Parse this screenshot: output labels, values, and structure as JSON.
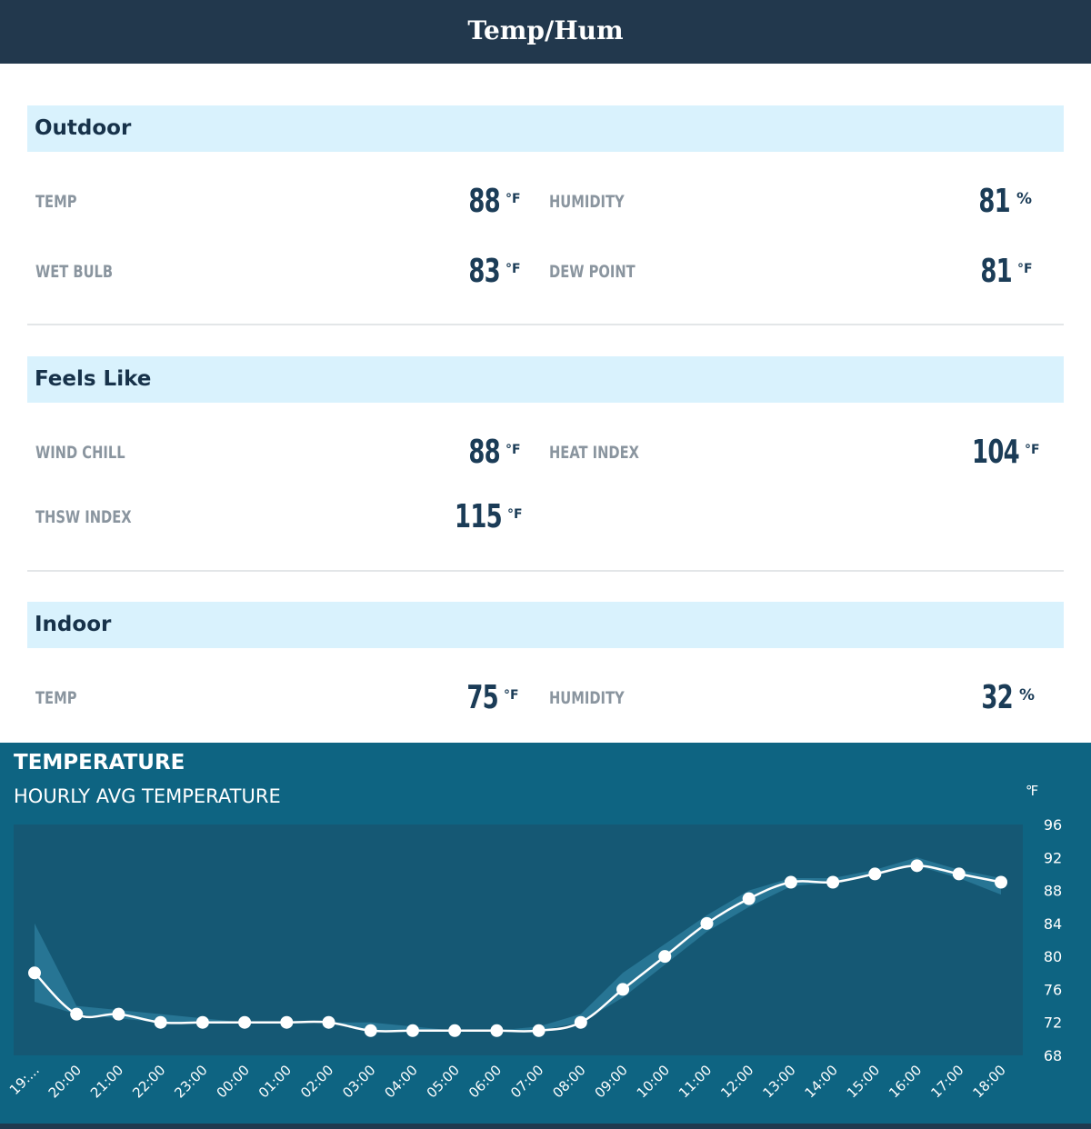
{
  "header": {
    "title": "Temp/Hum"
  },
  "outdoor": {
    "heading": "Outdoor",
    "temp": {
      "label": "TEMP",
      "value": "88",
      "unit": "°F"
    },
    "humidity": {
      "label": "HUMIDITY",
      "value": "81",
      "unit": "%"
    },
    "wet_bulb": {
      "label": "WET BULB",
      "value": "83",
      "unit": "°F"
    },
    "dew_point": {
      "label": "DEW POINT",
      "value": "81",
      "unit": "°F"
    }
  },
  "feels_like": {
    "heading": "Feels Like",
    "wind_chill": {
      "label": "WIND CHILL",
      "value": "88",
      "unit": "°F"
    },
    "heat_index": {
      "label": "HEAT INDEX",
      "value": "104",
      "unit": "°F"
    },
    "thsw_index": {
      "label": "THSW INDEX",
      "value": "115",
      "unit": "°F"
    }
  },
  "indoor": {
    "heading": "Indoor",
    "temp": {
      "label": "TEMP",
      "value": "75",
      "unit": "°F"
    },
    "humidity": {
      "label": "HUMIDITY",
      "value": "32",
      "unit": "%"
    }
  },
  "chart_panel": {
    "title": "TEMPERATURE",
    "subtitle": "HOURLY AVG TEMPERATURE",
    "unit": "℉"
  },
  "colors": {
    "header_bg": "#22384d",
    "section_bg": "#d9f2fd",
    "value_text": "#1b3c57",
    "chart_bg": "#0e6482",
    "plot_bg": "#155874",
    "band": "#2a7a9a"
  },
  "chart_data": {
    "type": "line",
    "title": "TEMPERATURE",
    "subtitle": "HOURLY AVG TEMPERATURE",
    "ylabel": "℉",
    "ylim": [
      68,
      96
    ],
    "yticks": [
      96,
      92,
      88,
      84,
      80,
      76,
      72,
      68
    ],
    "grid": false,
    "categories": [
      "19:...",
      "20:00",
      "21:00",
      "22:00",
      "23:00",
      "00:00",
      "01:00",
      "02:00",
      "03:00",
      "04:00",
      "05:00",
      "06:00",
      "07:00",
      "08:00",
      "09:00",
      "10:00",
      "11:00",
      "12:00",
      "13:00",
      "14:00",
      "15:00",
      "16:00",
      "17:00",
      "18:00"
    ],
    "series": [
      {
        "values": [
          78,
          73,
          73,
          72,
          72,
          72,
          72,
          72,
          71,
          71,
          71,
          71,
          71,
          72,
          76,
          80,
          84,
          87,
          89,
          89,
          90,
          91,
          90,
          89
        ]
      }
    ],
    "band_low": [
      74.5,
      73,
      72.5,
      72,
      72,
      72,
      72,
      72,
      71,
      71,
      71,
      71,
      71,
      72,
      75,
      79,
      83,
      86,
      88.5,
      89,
      90,
      91,
      89.5,
      87.5
    ],
    "band_high": [
      84,
      74,
      73.5,
      73,
      72.5,
      72,
      72,
      72,
      72,
      71.5,
      71,
      71,
      71.5,
      73,
      78,
      81.5,
      85,
      88,
      89.5,
      89.5,
      90.5,
      92,
      90.5,
      89.5
    ]
  }
}
